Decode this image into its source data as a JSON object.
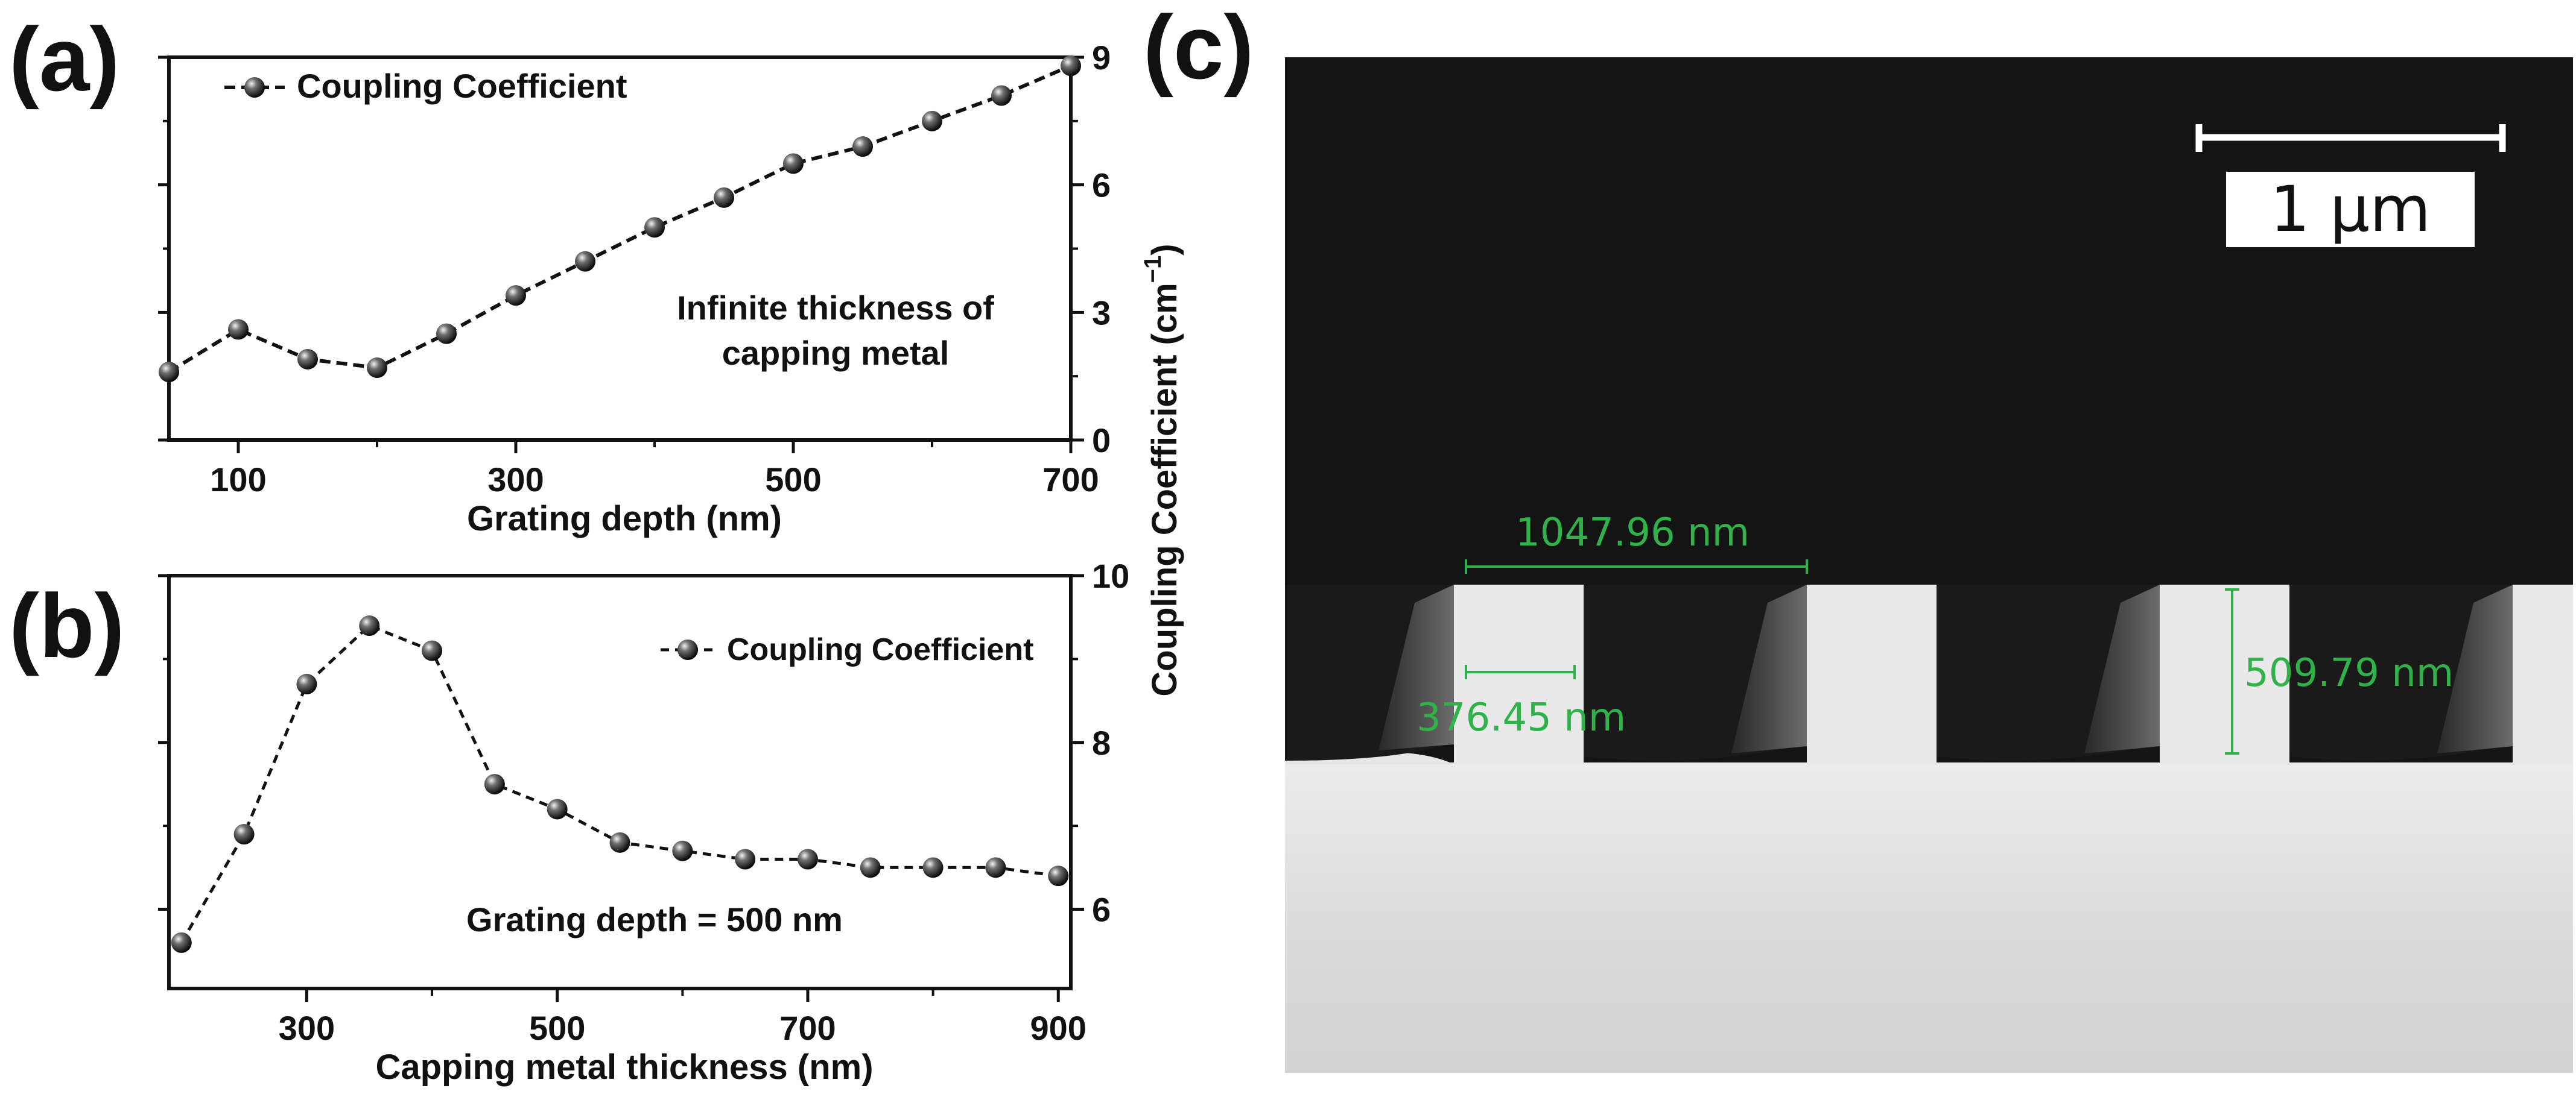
{
  "colors": {
    "marker": "#111111",
    "measure": "#2fb24a",
    "axis": "#111111"
  },
  "panel_labels": {
    "a": "(a)",
    "b": "(b)",
    "c": "(c)"
  },
  "shared_ylabel": "Coupling Coefficient (cm",
  "shared_ylabel_sup": "−1",
  "shared_ylabel_close": ")",
  "chart_data": [
    {
      "type": "line",
      "panel": "(a)",
      "xlabel": "Grating depth (nm)",
      "ylabel": "Coupling Coefficient (cm−1)",
      "xlim": [
        50,
        700
      ],
      "ylim": [
        0,
        9
      ],
      "xticks": [
        100,
        300,
        500,
        700
      ],
      "yticks": [
        0,
        3,
        6,
        9
      ],
      "legend": "Coupling Coefficient",
      "legend_position": "top-left",
      "annotation": [
        "Infinite thickness of",
        "capping metal"
      ],
      "series": [
        {
          "name": "Coupling Coefficient",
          "x": [
            50,
            100,
            150,
            200,
            250,
            300,
            350,
            400,
            450,
            500,
            550,
            600,
            650,
            700
          ],
          "values": [
            1.6,
            2.6,
            1.9,
            1.7,
            2.5,
            3.4,
            4.2,
            5.0,
            5.7,
            6.5,
            6.9,
            7.5,
            8.1,
            8.8
          ]
        }
      ]
    },
    {
      "type": "line",
      "panel": "(b)",
      "xlabel": "Capping metal thickness (nm)",
      "ylabel": "Coupling Coefficient (cm−1)",
      "xlim": [
        190,
        910
      ],
      "ylim": [
        5.05,
        10
      ],
      "xticks": [
        300,
        500,
        700,
        900
      ],
      "yticks": [
        6,
        8,
        10
      ],
      "legend": "Coupling Coefficient",
      "legend_position": "top-right",
      "annotation": [
        "Grating depth = 500 nm"
      ],
      "series": [
        {
          "name": "Coupling Coefficient",
          "x": [
            200,
            250,
            300,
            350,
            400,
            450,
            500,
            550,
            600,
            650,
            700,
            750,
            800,
            850,
            900
          ],
          "values": [
            5.6,
            6.9,
            8.7,
            9.4,
            9.1,
            7.5,
            7.2,
            6.8,
            6.7,
            6.6,
            6.6,
            6.5,
            6.5,
            6.5,
            6.4
          ]
        }
      ]
    }
  ],
  "sem_image": {
    "panel": "(c)",
    "scale_bar_label": "1 μm",
    "period_label": "1047.96 nm",
    "width_label": "376.45 nm",
    "depth_label": "509.79 nm"
  }
}
